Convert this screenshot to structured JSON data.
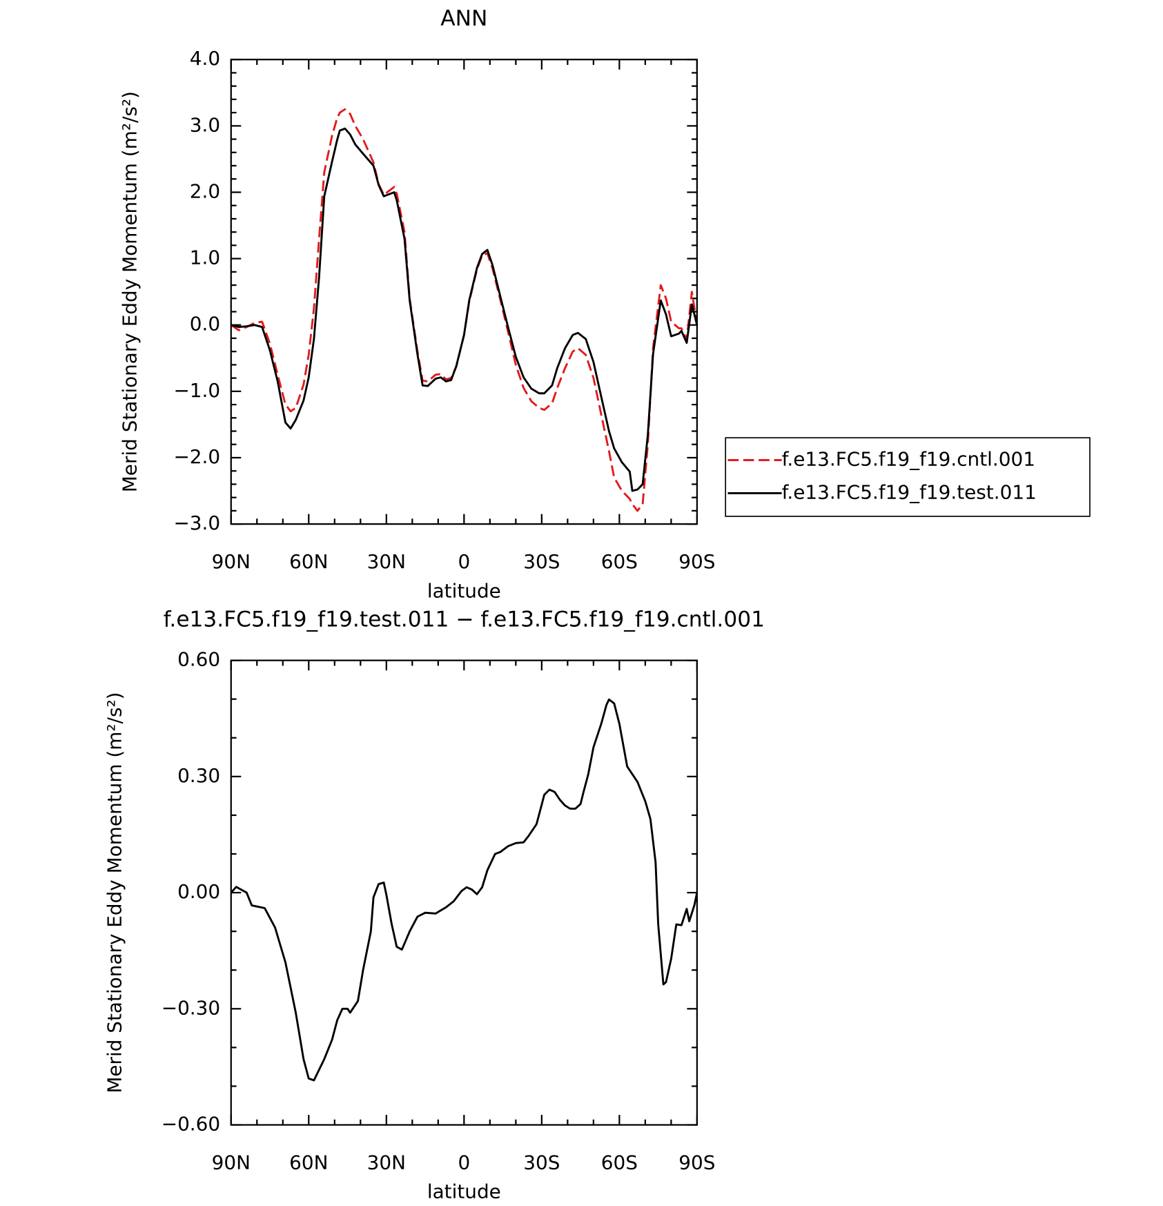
{
  "chart_data": [
    {
      "type": "line",
      "title": "ANN",
      "xlabel": "latitude",
      "ylabel": "Merid Stationary Eddy Momentum (m²/s²)",
      "x": [
        90,
        87,
        84,
        81,
        78,
        75,
        72,
        69,
        67,
        65,
        62,
        60,
        58,
        56,
        54,
        51,
        49,
        48,
        46,
        44,
        42,
        39,
        35,
        33,
        31,
        27,
        26,
        23,
        21,
        18,
        16,
        14,
        11,
        9,
        7,
        5,
        3,
        0,
        -2,
        -5,
        -7,
        -9,
        -11,
        -14,
        -17,
        -20,
        -23,
        -26,
        -29,
        -31,
        -34,
        -36,
        -39,
        -42,
        -44,
        -47,
        -50,
        -53,
        -56,
        -58,
        -61,
        -64,
        -65,
        -67,
        -69,
        -71,
        -73,
        -76,
        -78,
        -80,
        -83,
        -84,
        -86,
        -88,
        -90
      ],
      "series": [
        {
          "name": "f.e13.FC5.f19_f19.cntl.001",
          "color": "#e41a1c",
          "dash": "dashed",
          "values": [
            0,
            -0.08,
            -0.03,
            0.03,
            0.05,
            -0.28,
            -0.75,
            -1.2,
            -1.3,
            -1.25,
            -0.9,
            -0.45,
            0.25,
            1.3,
            2.3,
            2.85,
            3.12,
            3.2,
            3.25,
            3.18,
            3.0,
            2.8,
            2.45,
            2.12,
            1.96,
            2.08,
            1.98,
            1.4,
            0.4,
            -0.4,
            -0.84,
            -0.85,
            -0.75,
            -0.74,
            -0.82,
            -0.8,
            -0.63,
            -0.15,
            0.35,
            0.84,
            1.05,
            1.08,
            0.85,
            0.38,
            -0.1,
            -0.6,
            -0.95,
            -1.15,
            -1.25,
            -1.28,
            -1.18,
            -0.95,
            -0.65,
            -0.4,
            -0.35,
            -0.45,
            -0.8,
            -1.35,
            -1.9,
            -2.3,
            -2.5,
            -2.62,
            -2.7,
            -2.8,
            -2.7,
            -1.8,
            -0.35,
            0.6,
            0.4,
            0.05,
            -0.05,
            -0.05,
            -0.22,
            0.5,
            0
          ]
        },
        {
          "name": "f.e13.FC5.f19_f19.test.011",
          "color": "#000000",
          "dash": "solid",
          "values": [
            0,
            -0.03,
            -0.02,
            0.0,
            -0.03,
            -0.38,
            -0.85,
            -1.47,
            -1.56,
            -1.43,
            -1.14,
            -0.79,
            -0.21,
            0.72,
            1.94,
            2.46,
            2.79,
            2.93,
            2.96,
            2.87,
            2.72,
            2.58,
            2.4,
            2.11,
            1.94,
            2.0,
            1.88,
            1.3,
            0.37,
            -0.44,
            -0.91,
            -0.92,
            -0.81,
            -0.79,
            -0.85,
            -0.83,
            -0.62,
            -0.15,
            0.37,
            0.86,
            1.07,
            1.13,
            0.9,
            0.43,
            -0.03,
            -0.48,
            -0.79,
            -0.96,
            -1.03,
            -1.03,
            -0.91,
            -0.65,
            -0.35,
            -0.15,
            -0.12,
            -0.21,
            -0.56,
            -1.08,
            -1.6,
            -1.86,
            -2.07,
            -2.21,
            -2.5,
            -2.48,
            -2.4,
            -1.66,
            -0.44,
            0.37,
            0.16,
            -0.17,
            -0.13,
            -0.09,
            -0.27,
            0.31,
            0
          ]
        }
      ],
      "xlim": [
        90,
        -90
      ],
      "xticks": [
        {
          "value": 90,
          "label": "90N"
        },
        {
          "value": 60,
          "label": "60N"
        },
        {
          "value": 30,
          "label": "30N"
        },
        0,
        {
          "value": -30,
          "label": "30S"
        },
        {
          "value": -60,
          "label": "60S"
        },
        {
          "value": -90,
          "label": "90S"
        }
      ],
      "ylim": [
        -3,
        4
      ],
      "yticks": [
        {
          "value": -3,
          "label": "−3.0"
        },
        {
          "value": -2,
          "label": "−2.0"
        },
        {
          "value": -1,
          "label": "−1.0"
        },
        {
          "value": 0,
          "label": "0.0"
        },
        {
          "value": 1,
          "label": "1.0"
        },
        {
          "value": 2,
          "label": "2.0"
        },
        {
          "value": 3,
          "label": "3.0"
        },
        {
          "value": 4,
          "label": "4.0"
        }
      ],
      "legend": "right"
    },
    {
      "type": "line",
      "title": "f.e13.FC5.f19_f19.test.011 − f.e13.FC5.f19_f19.cntl.001",
      "xlabel": "latitude",
      "ylabel": "Merid Stationary Eddy Momentum (m²/s²)",
      "x": [
        90,
        88,
        84,
        82,
        77,
        73,
        69,
        65,
        62,
        60,
        58,
        54,
        51,
        49,
        47,
        45,
        44,
        41,
        39,
        36,
        35,
        33,
        31,
        30,
        28,
        26,
        24,
        21,
        18,
        15,
        11,
        7,
        4,
        1,
        -1,
        -3,
        -5,
        -7,
        -9,
        -12,
        -14,
        -17,
        -20,
        -23,
        -25,
        -28,
        -30,
        -31,
        -33,
        -35,
        -37,
        -39,
        -41,
        -43,
        -45,
        -46,
        -48,
        -50,
        -53,
        -55,
        -56,
        -58,
        -60,
        -63,
        -67,
        -70,
        -72,
        -74,
        -75,
        -77,
        -78,
        -80,
        -82,
        -84,
        -86,
        -87,
        -89,
        -90
      ],
      "color": "#000000",
      "values": [
        0,
        0.015,
        0,
        -0.033,
        -0.04,
        -0.09,
        -0.18,
        -0.31,
        -0.43,
        -0.48,
        -0.485,
        -0.43,
        -0.38,
        -0.33,
        -0.3,
        -0.3,
        -0.31,
        -0.28,
        -0.2,
        -0.1,
        -0.012,
        0.022,
        0.026,
        -0.006,
        -0.08,
        -0.14,
        -0.147,
        -0.1,
        -0.062,
        -0.052,
        -0.054,
        -0.038,
        -0.022,
        0.004,
        0.014,
        0.008,
        -0.004,
        0.014,
        0.058,
        0.1,
        0.105,
        0.12,
        0.128,
        0.13,
        0.147,
        0.177,
        0.227,
        0.253,
        0.266,
        0.26,
        0.24,
        0.225,
        0.217,
        0.217,
        0.229,
        0.256,
        0.306,
        0.376,
        0.436,
        0.485,
        0.499,
        0.489,
        0.436,
        0.326,
        0.286,
        0.236,
        0.19,
        0.078,
        -0.082,
        -0.237,
        -0.231,
        -0.171,
        -0.082,
        -0.084,
        -0.042,
        -0.074,
        -0.032,
        0
      ],
      "xlim": [
        90,
        -90
      ],
      "xticks": [
        {
          "value": 90,
          "label": "90N"
        },
        {
          "value": 60,
          "label": "60N"
        },
        {
          "value": 30,
          "label": "30N"
        },
        0,
        {
          "value": -30,
          "label": "30S"
        },
        {
          "value": -60,
          "label": "60S"
        },
        {
          "value": -90,
          "label": "90S"
        }
      ],
      "ylim": [
        -0.6,
        0.6
      ],
      "yticks": [
        {
          "value": -0.6,
          "label": "−0.60"
        },
        {
          "value": -0.3,
          "label": "−0.30"
        },
        {
          "value": 0,
          "label": "0.00"
        },
        {
          "value": 0.3,
          "label": "0.30"
        },
        {
          "value": 0.6,
          "label": "0.60"
        }
      ]
    }
  ]
}
